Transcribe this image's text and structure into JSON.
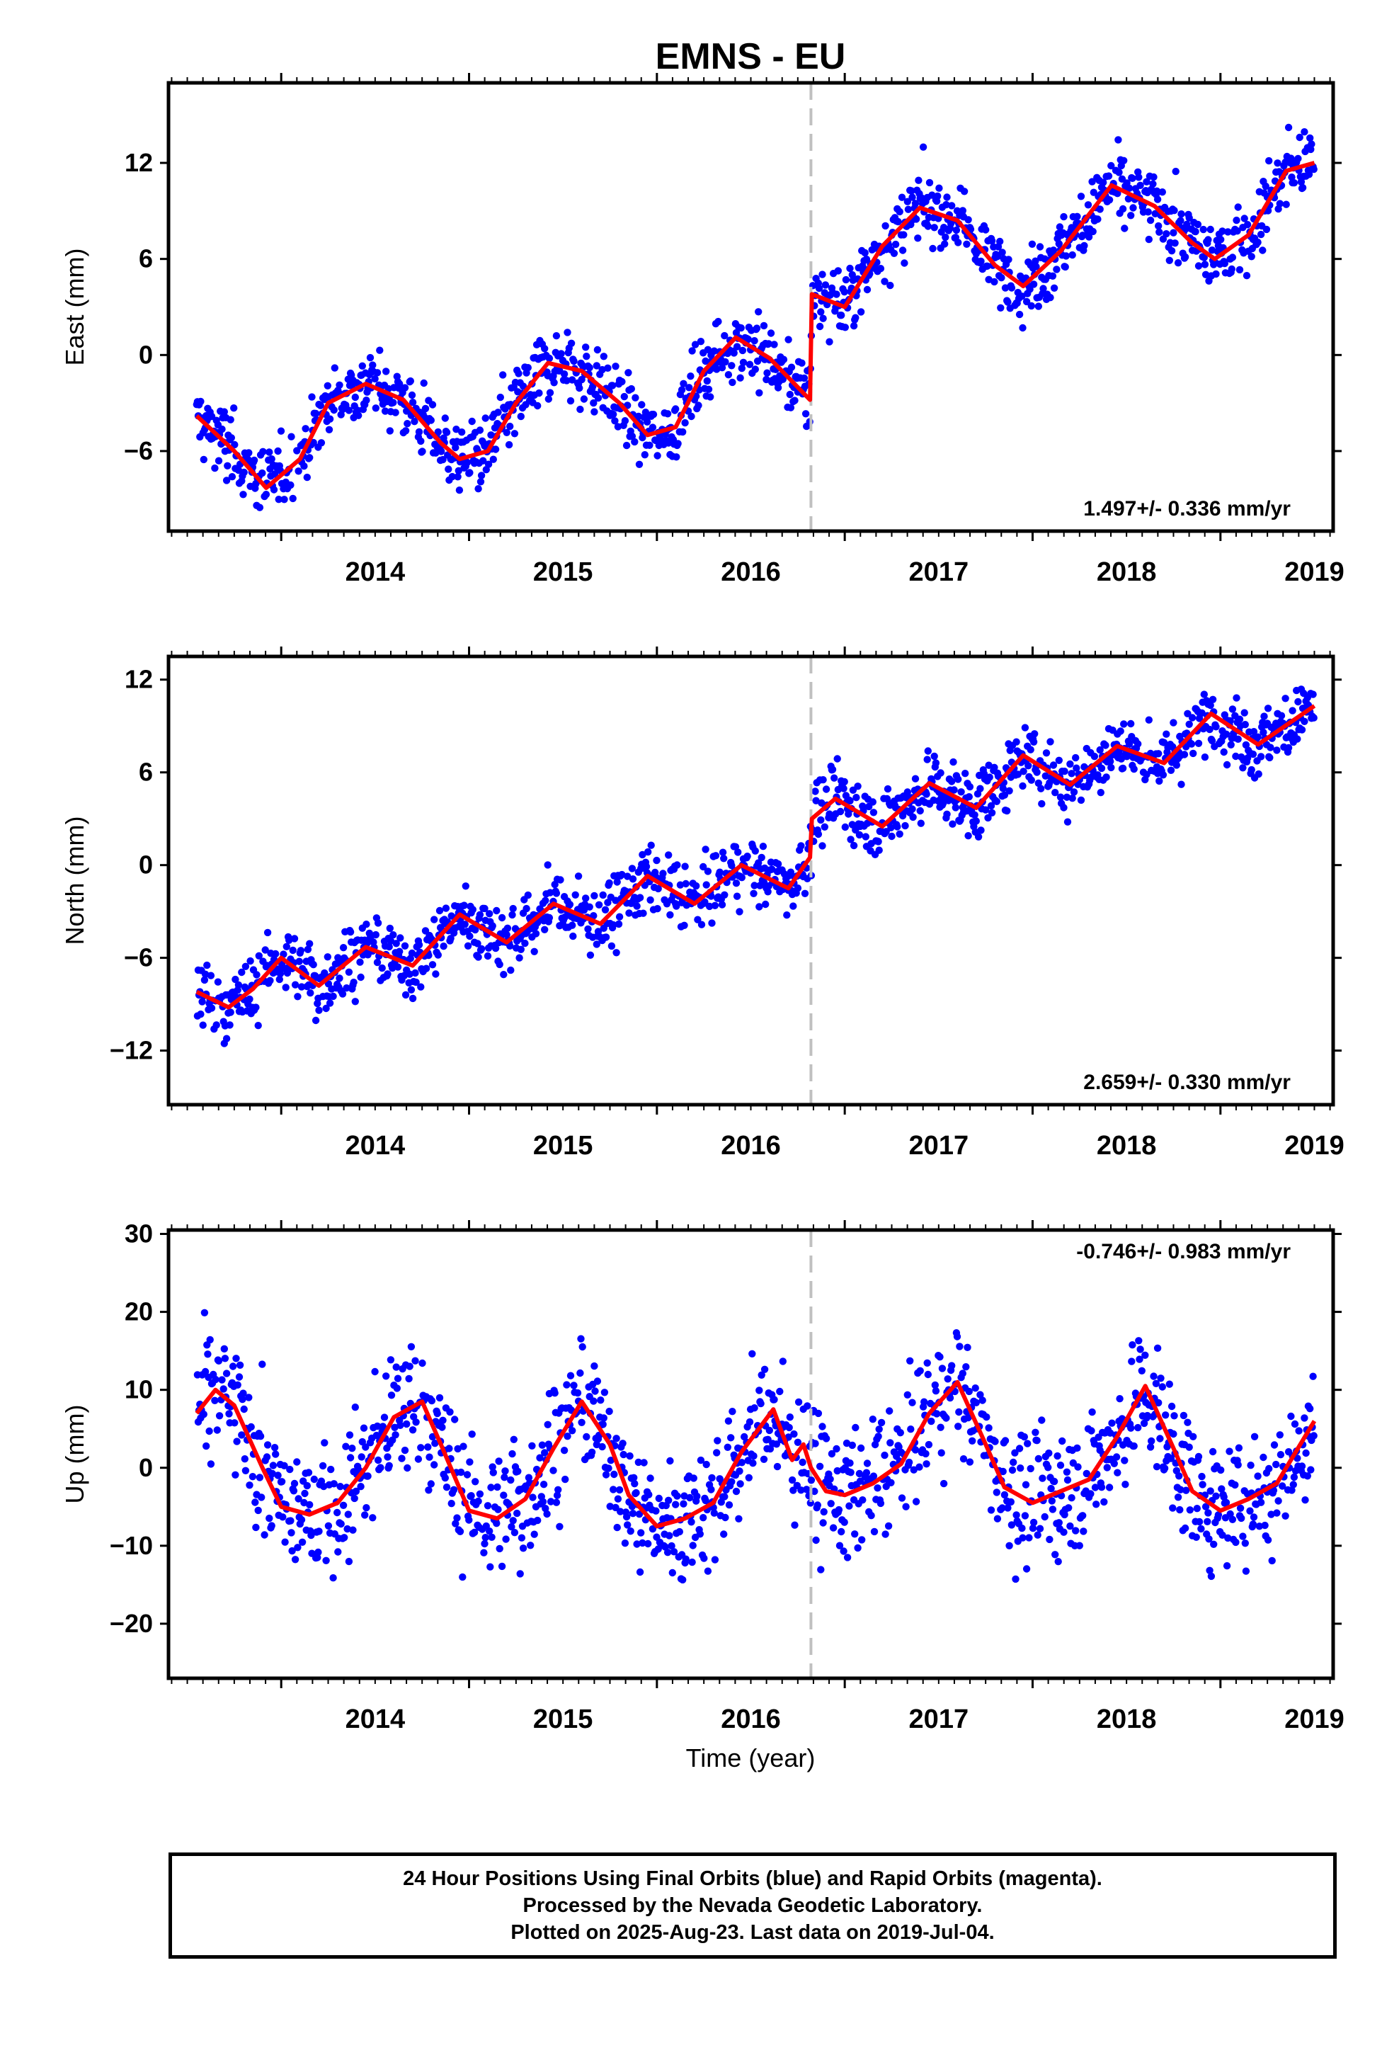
{
  "title": "EMNS - EU",
  "xlabel": "Time (year)",
  "footer": {
    "line1": "24 Hour Positions Using Final Orbits (blue) and Rapid Orbits (magenta).",
    "line2": "Processed by the Nevada Geodetic Laboratory.",
    "line3": "Plotted on 2025-Aug-23. Last data on 2019-Jul-04."
  },
  "colors": {
    "final_orbits": "#0000ff",
    "model": "#ff0000",
    "equipment_change": "#c0c0c0",
    "axes": "#000000"
  },
  "chart_data": [
    {
      "type": "scatter",
      "ylabel": "East (mm)",
      "rate_label": "1.497+/- 0.336 mm/yr",
      "xlim": [
        2013.4,
        2019.6
      ],
      "ylim": [
        -11,
        17
      ],
      "yticks": [
        -6,
        0,
        6,
        12
      ],
      "xticks": [
        2014,
        2015,
        2016,
        2017,
        2018,
        2019
      ],
      "equipment_change": 2016.82,
      "series": [
        {
          "kind": "line",
          "x": [
            2013.55,
            2013.75,
            2013.92,
            2014.1,
            2014.25,
            2014.45,
            2014.65,
            2014.85,
            2014.95,
            2015.1,
            2015.25,
            2015.42,
            2015.6,
            2015.8,
            2015.95,
            2016.1,
            2016.25,
            2016.42,
            2016.6,
            2016.815,
            2016.825,
            2017.0,
            2017.2,
            2017.4,
            2017.6,
            2017.8,
            2017.95,
            2018.15,
            2018.42,
            2018.65,
            2018.85,
            2018.97,
            2019.15,
            2019.35,
            2019.5
          ],
          "y": [
            -3.8,
            -6.0,
            -8.3,
            -6.5,
            -3.0,
            -1.8,
            -2.8,
            -5.5,
            -6.5,
            -6.0,
            -3.0,
            -0.5,
            -1.0,
            -3.0,
            -5.0,
            -4.5,
            -1.0,
            1.1,
            -0.2,
            -2.8,
            3.8,
            3.0,
            6.8,
            9.2,
            8.4,
            5.6,
            4.3,
            6.5,
            10.6,
            9.3,
            7.0,
            6.0,
            7.5,
            11.5,
            12.0
          ]
        }
      ]
    },
    {
      "type": "scatter",
      "ylabel": "North (mm)",
      "rate_label": "2.659+/- 0.330 mm/yr",
      "xlim": [
        2013.4,
        2019.6
      ],
      "ylim": [
        -15.5,
        13.5
      ],
      "yticks": [
        -12,
        -6,
        0,
        6,
        12
      ],
      "xticks": [
        2014,
        2015,
        2016,
        2017,
        2018,
        2019
      ],
      "equipment_change": 2016.82,
      "series": [
        {
          "kind": "line",
          "x": [
            2013.55,
            2013.72,
            2013.85,
            2014.0,
            2014.2,
            2014.45,
            2014.7,
            2014.95,
            2015.2,
            2015.45,
            2015.7,
            2015.95,
            2016.2,
            2016.45,
            2016.7,
            2016.815,
            2016.825,
            2016.95,
            2017.2,
            2017.45,
            2017.7,
            2017.95,
            2018.2,
            2018.45,
            2018.7,
            2018.95,
            2019.2,
            2019.5
          ],
          "y": [
            -8.2,
            -9.2,
            -8.0,
            -6.0,
            -7.8,
            -5.3,
            -6.5,
            -3.2,
            -5.0,
            -2.5,
            -3.8,
            -0.7,
            -2.5,
            0.0,
            -1.5,
            0.5,
            3.0,
            4.3,
            2.5,
            5.3,
            3.7,
            7.1,
            5.2,
            7.7,
            6.6,
            9.8,
            7.8,
            10.3
          ]
        }
      ]
    },
    {
      "type": "scatter",
      "ylabel": "Up (mm)",
      "rate_label": "-0.746+/- 0.983 mm/yr",
      "xlim": [
        2013.4,
        2019.6
      ],
      "ylim": [
        -27,
        30.5
      ],
      "yticks": [
        -20,
        -10,
        0,
        10,
        20,
        30
      ],
      "xticks": [
        2014,
        2015,
        2016,
        2017,
        2018,
        2019
      ],
      "equipment_change": 2016.82,
      "series": [
        {
          "kind": "line",
          "x": [
            2013.55,
            2013.65,
            2013.75,
            2013.9,
            2014.0,
            2014.15,
            2014.3,
            2014.45,
            2014.6,
            2014.75,
            2014.85,
            2015.0,
            2015.15,
            2015.3,
            2015.45,
            2015.6,
            2015.75,
            2015.85,
            2016.0,
            2016.15,
            2016.3,
            2016.45,
            2016.62,
            2016.72,
            2016.78,
            2016.82,
            2016.9,
            2017.0,
            2017.15,
            2017.3,
            2017.45,
            2017.6,
            2017.75,
            2017.85,
            2018.0,
            2018.15,
            2018.3,
            2018.45,
            2018.6,
            2018.75,
            2018.85,
            2019.0,
            2019.15,
            2019.3,
            2019.5
          ],
          "y": [
            7.0,
            10.0,
            8.0,
            0.0,
            -5.0,
            -6.0,
            -4.5,
            0.0,
            6.5,
            8.5,
            3.0,
            -5.5,
            -6.5,
            -4.0,
            2.5,
            8.5,
            3.0,
            -3.5,
            -7.5,
            -6.5,
            -4.5,
            2.0,
            7.5,
            1.0,
            3.0,
            0.0,
            -3.0,
            -3.5,
            -2.0,
            0.5,
            7.0,
            11.0,
            3.0,
            -2.5,
            -4.5,
            -3.0,
            -1.5,
            4.0,
            10.5,
            2.5,
            -3.0,
            -5.5,
            -4.0,
            -2.0,
            6.0
          ]
        }
      ]
    }
  ]
}
